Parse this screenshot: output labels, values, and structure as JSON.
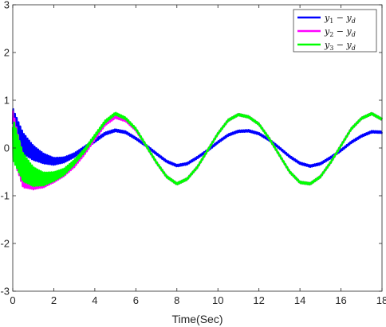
{
  "chart_data": {
    "type": "line",
    "title": "",
    "xlabel": "Time(Sec)",
    "ylabel": "",
    "xlim": [
      0,
      18
    ],
    "ylim": [
      -3,
      3
    ],
    "xticks": [
      0,
      2,
      4,
      6,
      8,
      10,
      12,
      14,
      16,
      18
    ],
    "yticks": [
      -3,
      -2,
      -1,
      0,
      1,
      2,
      3
    ],
    "grid": false,
    "box": true,
    "legend_position": "top-right",
    "series": [
      {
        "name": "y1 − yd",
        "color": "#0000ff",
        "points": [
          [
            0,
            0.5
          ],
          [
            0.5,
            0.1
          ],
          [
            1,
            -0.1
          ],
          [
            1.5,
            -0.22
          ],
          [
            2,
            -0.28
          ],
          [
            2.5,
            -0.25
          ],
          [
            3,
            -0.15
          ],
          [
            3.5,
            0.0
          ],
          [
            4,
            0.15
          ],
          [
            4.5,
            0.3
          ],
          [
            5,
            0.37
          ],
          [
            5.5,
            0.33
          ],
          [
            6,
            0.2
          ],
          [
            6.5,
            0.05
          ],
          [
            7,
            -0.12
          ],
          [
            7.5,
            -0.28
          ],
          [
            8,
            -0.37
          ],
          [
            8.5,
            -0.33
          ],
          [
            9,
            -0.2
          ],
          [
            9.5,
            -0.05
          ],
          [
            10,
            0.12
          ],
          [
            10.5,
            0.27
          ],
          [
            11,
            0.35
          ],
          [
            11.5,
            0.36
          ],
          [
            12,
            0.3
          ],
          [
            12.5,
            0.17
          ],
          [
            13,
            0.0
          ],
          [
            13.5,
            -0.18
          ],
          [
            14,
            -0.32
          ],
          [
            14.5,
            -0.38
          ],
          [
            15,
            -0.33
          ],
          [
            15.5,
            -0.2
          ],
          [
            16,
            -0.05
          ],
          [
            16.5,
            0.12
          ],
          [
            17,
            0.25
          ],
          [
            17.5,
            0.34
          ],
          [
            18,
            0.33
          ]
        ]
      },
      {
        "name": "y2 − yd",
        "color": "#ff00ff",
        "points": [
          [
            0,
            0.3
          ],
          [
            0.5,
            -0.5
          ],
          [
            1,
            -0.65
          ],
          [
            1.5,
            -0.68
          ],
          [
            2,
            -0.62
          ],
          [
            2.5,
            -0.52
          ],
          [
            3,
            -0.35
          ],
          [
            3.5,
            -0.1
          ],
          [
            4,
            0.2
          ],
          [
            4.5,
            0.5
          ],
          [
            5,
            0.65
          ],
          [
            5.5,
            0.58
          ],
          [
            6,
            0.38
          ],
          [
            6.5,
            0.05
          ],
          [
            7,
            -0.3
          ],
          [
            7.5,
            -0.6
          ],
          [
            8,
            -0.75
          ],
          [
            8.5,
            -0.65
          ],
          [
            9,
            -0.4
          ],
          [
            9.5,
            -0.05
          ],
          [
            10,
            0.3
          ],
          [
            10.5,
            0.58
          ],
          [
            11,
            0.7
          ],
          [
            11.5,
            0.65
          ],
          [
            12,
            0.5
          ],
          [
            12.5,
            0.2
          ],
          [
            13,
            -0.15
          ],
          [
            13.5,
            -0.5
          ],
          [
            14,
            -0.72
          ],
          [
            14.5,
            -0.75
          ],
          [
            15,
            -0.6
          ],
          [
            15.5,
            -0.3
          ],
          [
            16,
            0.05
          ],
          [
            16.5,
            0.4
          ],
          [
            17,
            0.62
          ],
          [
            17.5,
            0.72
          ],
          [
            18,
            0.6
          ]
        ]
      },
      {
        "name": "y3 − yd",
        "color": "#00ff00",
        "points": [
          [
            0,
            0.2
          ],
          [
            0.5,
            -0.4
          ],
          [
            1,
            -0.6
          ],
          [
            1.5,
            -0.65
          ],
          [
            2,
            -0.6
          ],
          [
            2.5,
            -0.5
          ],
          [
            3,
            -0.3
          ],
          [
            3.5,
            -0.05
          ],
          [
            4,
            0.25
          ],
          [
            4.5,
            0.55
          ],
          [
            5,
            0.72
          ],
          [
            5.5,
            0.62
          ],
          [
            6,
            0.4
          ],
          [
            6.5,
            0.05
          ],
          [
            7,
            -0.3
          ],
          [
            7.5,
            -0.6
          ],
          [
            8,
            -0.75
          ],
          [
            8.5,
            -0.65
          ],
          [
            9,
            -0.4
          ],
          [
            9.5,
            -0.05
          ],
          [
            10,
            0.3
          ],
          [
            10.5,
            0.58
          ],
          [
            11,
            0.7
          ],
          [
            11.5,
            0.65
          ],
          [
            12,
            0.5
          ],
          [
            12.5,
            0.2
          ],
          [
            13,
            -0.15
          ],
          [
            13.5,
            -0.5
          ],
          [
            14,
            -0.72
          ],
          [
            14.5,
            -0.75
          ],
          [
            15,
            -0.6
          ],
          [
            15.5,
            -0.3
          ],
          [
            16,
            0.05
          ],
          [
            16.5,
            0.4
          ],
          [
            17,
            0.62
          ],
          [
            17.5,
            0.72
          ],
          [
            18,
            0.6
          ]
        ]
      }
    ],
    "legend_labels": [
      {
        "var": "y",
        "sub": "1",
        "var2": "y",
        "sub2": "d"
      },
      {
        "var": "y",
        "sub": "2",
        "var2": "y",
        "sub2": "d"
      },
      {
        "var": "y",
        "sub": "3",
        "var2": "y",
        "sub2": "d"
      }
    ]
  }
}
